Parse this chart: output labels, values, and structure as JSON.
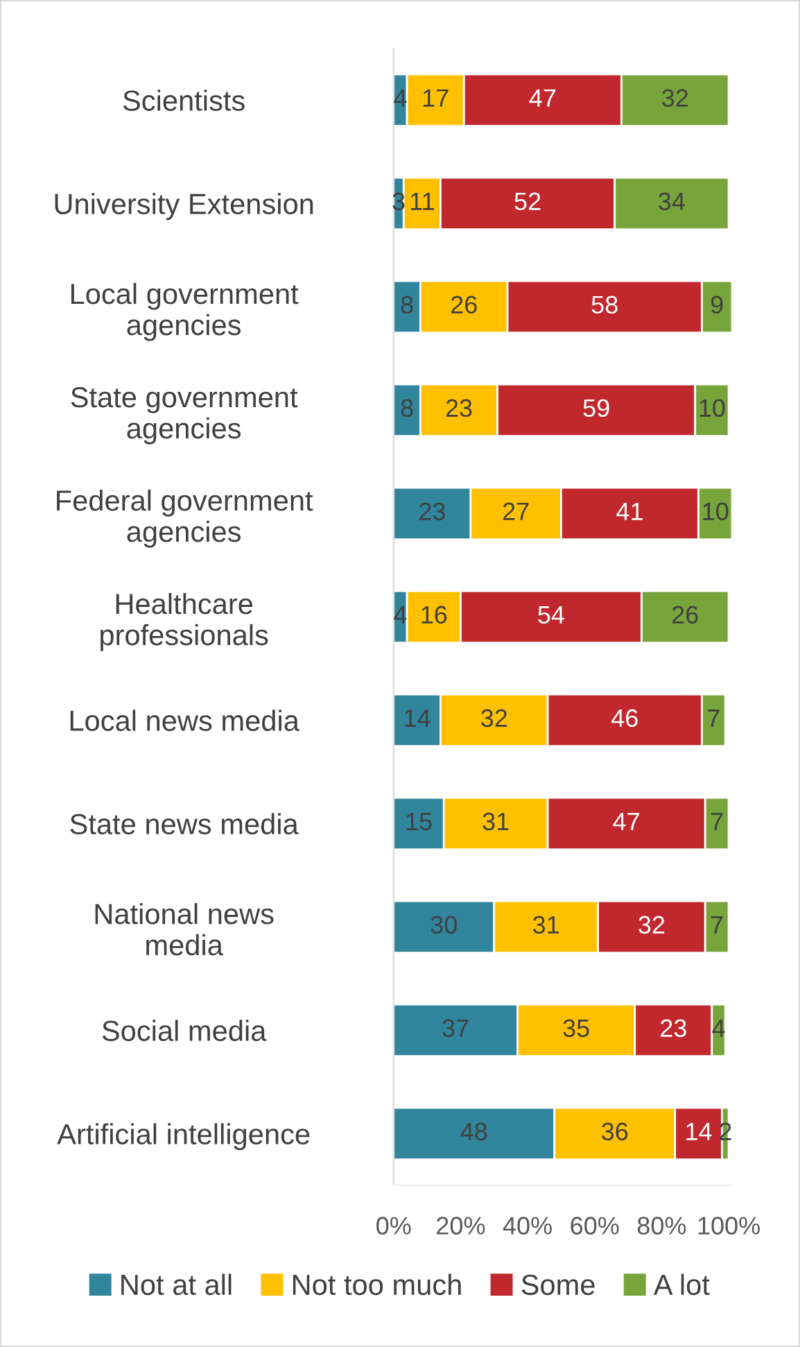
{
  "chart_data": {
    "type": "bar",
    "orientation": "horizontal",
    "stacked": true,
    "data_labels": true,
    "grid": false,
    "legend": "bottom",
    "categories": [
      "Scientists",
      "University Extension",
      "Local government\nagencies",
      "State government\nagencies",
      "Federal government\nagencies",
      "Healthcare\nprofessionals",
      "Local news media",
      "State news media",
      "National news\nmedia",
      "Social media",
      "Artificial intelligence"
    ],
    "series": [
      {
        "name": "Not at all",
        "color": "#31859c",
        "values": [
          4,
          3,
          8,
          8,
          23,
          4,
          14,
          15,
          30,
          37,
          48
        ]
      },
      {
        "name": "Not too much",
        "color": "#ffc000",
        "values": [
          17,
          11,
          26,
          23,
          27,
          16,
          32,
          31,
          31,
          35,
          36
        ]
      },
      {
        "name": "Some",
        "color": "#c0282d",
        "values": [
          47,
          52,
          58,
          59,
          41,
          54,
          46,
          47,
          32,
          23,
          14
        ]
      },
      {
        "name": "A lot",
        "color": "#77a53b",
        "values": [
          32,
          34,
          9,
          10,
          10,
          26,
          7,
          7,
          7,
          4,
          2
        ]
      }
    ],
    "xlim": [
      0,
      101
    ],
    "xticks": [
      {
        "value": 0,
        "label": "0%"
      },
      {
        "value": 20,
        "label": "20%"
      },
      {
        "value": 40,
        "label": "40%"
      },
      {
        "value": 60,
        "label": "60%"
      },
      {
        "value": 80,
        "label": "80%"
      },
      {
        "value": 100,
        "label": "100%"
      }
    ]
  }
}
